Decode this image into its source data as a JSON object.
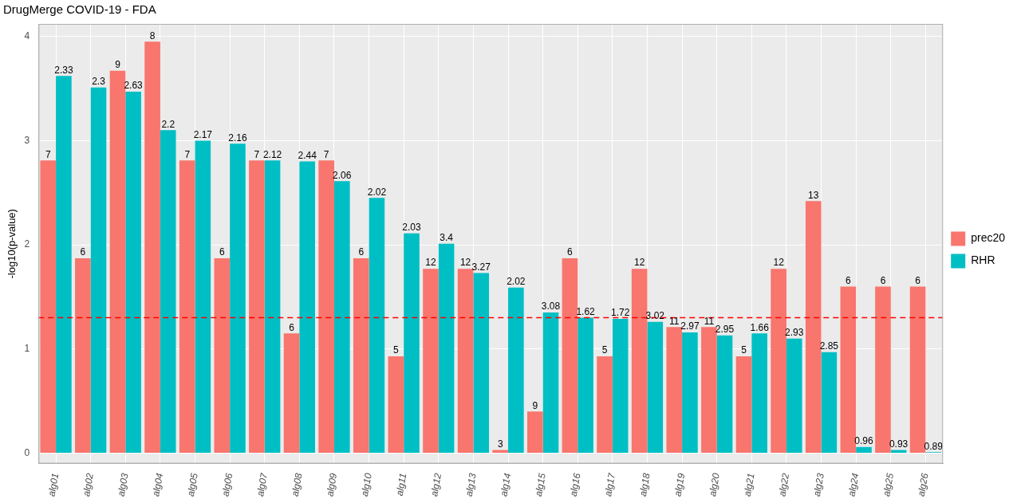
{
  "chart_data": {
    "type": "bar",
    "title": "DrugMerge COVID-19 - FDA",
    "y_label": "-log10(p-value)",
    "categories": [
      "alg01",
      "alg02",
      "alg03",
      "alg04",
      "alg05",
      "alg06",
      "alg07",
      "alg08",
      "alg09",
      "alg10",
      "alg11",
      "alg12",
      "alg13",
      "alg14",
      "alg15",
      "alg16",
      "alg17",
      "alg18",
      "alg19",
      "alg20",
      "alg21",
      "alg22",
      "alg23",
      "alg24",
      "alg25",
      "alg26"
    ],
    "series": [
      {
        "name": "prec20",
        "color": "#F8766D",
        "values": [
          2.81,
          1.87,
          3.67,
          3.95,
          2.81,
          1.87,
          2.81,
          1.15,
          2.81,
          1.87,
          0.93,
          1.77,
          1.77,
          0.03,
          0.4,
          1.87,
          0.93,
          1.77,
          1.21,
          1.21,
          0.93,
          1.77,
          2.42,
          1.6,
          1.6,
          1.6
        ],
        "bar_labels": [
          7,
          6,
          9,
          8,
          7,
          6,
          7,
          6,
          7,
          6,
          5,
          12,
          12,
          3,
          9,
          6,
          5,
          12,
          11,
          11,
          5,
          12,
          13,
          6,
          6,
          6
        ]
      },
      {
        "name": "RHR",
        "color": "#00BFC4",
        "values": [
          3.62,
          3.51,
          3.47,
          3.1,
          3.0,
          2.97,
          2.81,
          2.8,
          2.61,
          2.45,
          2.11,
          2.01,
          1.73,
          1.59,
          1.35,
          1.3,
          1.29,
          1.26,
          1.16,
          1.13,
          1.15,
          1.1,
          0.97,
          0.06,
          0.03,
          0.01
        ],
        "bar_labels": [
          2.33,
          2.3,
          2.63,
          2.2,
          2.17,
          2.16,
          2.12,
          2.44,
          2.06,
          2.02,
          2.03,
          3.4,
          3.27,
          2.02,
          3.08,
          1.62,
          1.72,
          3.02,
          2.97,
          2.95,
          1.66,
          2.93,
          2.85,
          0.96,
          0.93,
          0.89
        ]
      }
    ],
    "reference_lines": [
      {
        "value": 1.3,
        "color": "#FF0000",
        "line_style": "dashed"
      }
    ],
    "ylim": [
      -0.1,
      4.12
    ],
    "yticks": [
      0,
      1,
      2,
      3,
      4
    ],
    "grid": true,
    "legend": "right"
  }
}
